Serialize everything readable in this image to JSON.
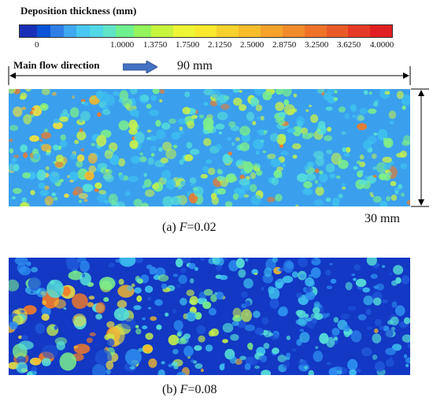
{
  "colorbar": {
    "title": "Deposition thickness (mm)",
    "ticks": [
      "0",
      "1.0000",
      "1.3750",
      "1.7500",
      "2.1250",
      "2.5000",
      "2.8750",
      "3.2500",
      "3.6250",
      "4.0000"
    ],
    "colors": [
      "#1a2fb8",
      "#0a53d6",
      "#2f7fe6",
      "#3fa8f0",
      "#49c7f2",
      "#52d7e6",
      "#5fe4c8",
      "#6ff08f",
      "#93f55a",
      "#c8f53d",
      "#eef534",
      "#f8e92f",
      "#f8d22c",
      "#f6bc2a",
      "#f5a22a",
      "#f28b2a",
      "#ef7229",
      "#ea5a29",
      "#e63a27",
      "#e01f23"
    ]
  },
  "flow": {
    "label": "Main flow direction",
    "arrow_color": "#4472c4"
  },
  "dimensions": {
    "width_label": "90 mm",
    "height_label": "30 mm"
  },
  "panels": [
    {
      "caption_prefix": "(a) ",
      "caption_var": "F",
      "caption_value": "=0.02"
    },
    {
      "caption_prefix": "(b) ",
      "caption_var": "F",
      "caption_value": "=0.08"
    }
  ]
}
